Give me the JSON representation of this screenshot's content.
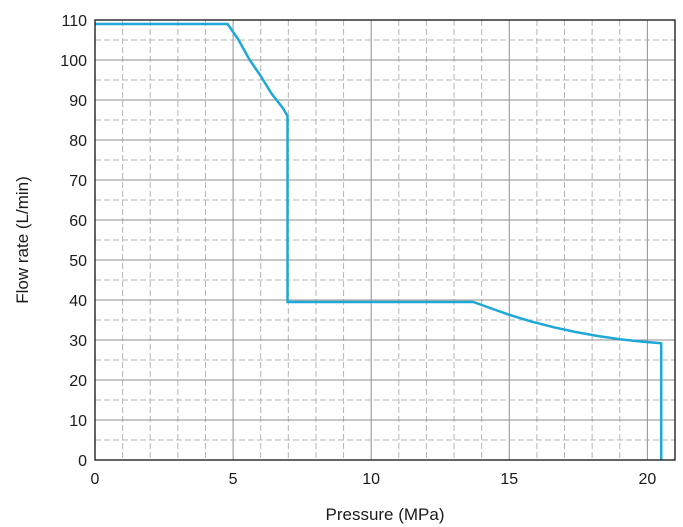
{
  "chart_data": {
    "type": "line",
    "title": "",
    "xlabel": "Pressure (MPa)",
    "ylabel": "Flow rate (L/min)",
    "xlim": [
      0,
      21
    ],
    "ylim": [
      0,
      110
    ],
    "x_ticks": [
      0,
      5,
      10,
      15,
      20
    ],
    "x_tick_labels": [
      "0",
      "5",
      "10",
      "15",
      "20"
    ],
    "y_ticks": [
      0,
      10,
      20,
      30,
      40,
      50,
      60,
      70,
      80,
      90,
      100,
      110
    ],
    "y_tick_labels": [
      "0",
      "10",
      "20",
      "30",
      "40",
      "50",
      "60",
      "70",
      "80",
      "90",
      "100",
      "110"
    ],
    "x_minor_step": 1,
    "y_minor_step": 5,
    "grid": true,
    "legend": "none",
    "series": [
      {
        "color": "#1ea8d8",
        "x": [
          0,
          4.8,
          5.2,
          5.6,
          6.0,
          6.4,
          6.8,
          6.97,
          6.97,
          7.0,
          13.7,
          14.3,
          15.0,
          15.8,
          16.6,
          17.4,
          18.2,
          19.0,
          19.8,
          20.5,
          20.5
        ],
        "y": [
          109,
          109,
          105,
          100,
          96,
          91.5,
          88,
          86,
          39.5,
          39.5,
          39.5,
          38,
          36.3,
          34.6,
          33.2,
          32,
          31,
          30.2,
          29.6,
          29.2,
          0
        ]
      }
    ]
  }
}
